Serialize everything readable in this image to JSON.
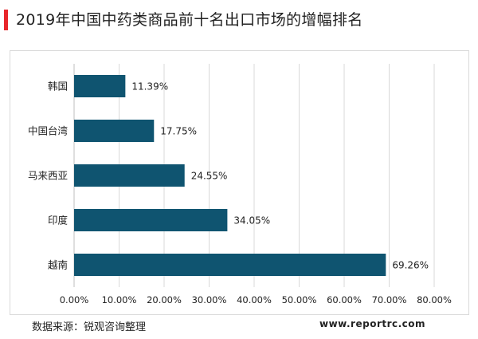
{
  "title": "2019年中国中药类商品前十名出口市场的增幅排名",
  "footer": {
    "source": "数据来源：锐观咨询整理",
    "site": "www.reportrc.com"
  },
  "colors": {
    "bar": "#0f5470",
    "accent": "#e8262b",
    "grid": "#d9d9d9",
    "text": "#222222"
  },
  "chart_data": {
    "type": "bar",
    "orientation": "horizontal",
    "categories": [
      "韩国",
      "中国台湾",
      "马来西亚",
      "印度",
      "越南"
    ],
    "values": [
      11.39,
      17.75,
      24.55,
      34.05,
      69.26
    ],
    "value_labels": [
      "11.39%",
      "17.75%",
      "24.55%",
      "34.05%",
      "69.26%"
    ],
    "xlim": [
      0,
      80
    ],
    "x_ticks": [
      0,
      10,
      20,
      30,
      40,
      50,
      60,
      70,
      80
    ],
    "x_tick_labels": [
      "0.00%",
      "10.00%",
      "20.00%",
      "30.00%",
      "40.00%",
      "50.00%",
      "60.00%",
      "70.00%",
      "80.00%"
    ],
    "grid": true,
    "legend": "none"
  }
}
